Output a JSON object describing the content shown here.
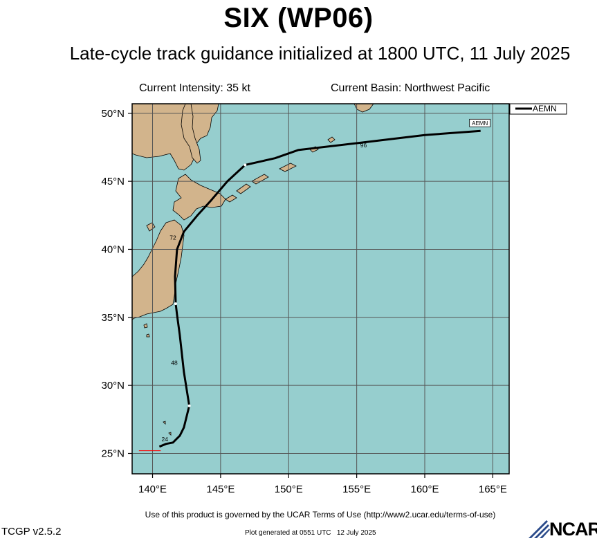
{
  "title": "SIX (WP06)",
  "subtitle": "Late-cycle track guidance initialized at 1800 UTC, 11 July 2025",
  "current_intensity": "Current Intensity: 35 kt",
  "current_basin": "Current Basin: Northwest Pacific",
  "terms": "Use of this product is governed by the UCAR Terms of Use (http://www2.ucar.edu/terms-of-use)",
  "version": "TCGP v2.5.2",
  "generated": "Plot generated at 0551 UTC   12 July 2025",
  "logo_text": "NCAR",
  "legend_label": "AEMN",
  "track_label": "AEMN",
  "colors": {
    "ocean": "#96cece",
    "land": "#d2b48c",
    "grid": "#555555",
    "track": "#000000",
    "initial_marker": "#ff0000"
  },
  "map": {
    "lon_range": [
      138.5,
      166.2
    ],
    "lat_range": [
      23.5,
      50.7
    ],
    "lon_ticks": [
      140,
      145,
      150,
      155,
      160,
      165
    ],
    "lat_ticks": [
      25,
      30,
      35,
      40,
      45,
      50
    ],
    "lon_labels": [
      "140°E",
      "145°E",
      "150°E",
      "155°E",
      "160°E",
      "165°E"
    ],
    "lat_labels": [
      "25°N",
      "30°N",
      "35°N",
      "40°N",
      "45°N",
      "50°N"
    ],
    "track": [
      [
        140.5,
        25.5
      ],
      [
        141.0,
        25.7
      ],
      [
        141.5,
        25.8
      ],
      [
        142.0,
        26.3
      ],
      [
        142.3,
        26.9
      ],
      [
        142.7,
        28.5
      ],
      [
        142.3,
        31.0
      ],
      [
        142.0,
        33.7
      ],
      [
        141.8,
        35.2
      ],
      [
        141.7,
        36.0
      ],
      [
        141.65,
        38.0
      ],
      [
        141.8,
        40.0
      ],
      [
        142.3,
        41.3
      ],
      [
        143.3,
        42.5
      ],
      [
        144.3,
        43.6
      ],
      [
        145.5,
        45.0
      ],
      [
        146.8,
        46.2
      ],
      [
        149.0,
        46.7
      ],
      [
        150.7,
        47.3
      ],
      [
        155.0,
        47.8
      ],
      [
        160.0,
        48.4
      ],
      [
        164.1,
        48.7
      ]
    ],
    "markers": [
      {
        "lon": 141.7,
        "lat": 36.0
      },
      {
        "lon": 142.7,
        "lat": 28.5
      },
      {
        "lon": 146.8,
        "lat": 46.2
      }
    ],
    "hour_labels": [
      {
        "text": "24",
        "lon": 140.9,
        "lat": 25.9
      },
      {
        "text": "48",
        "lon": 141.6,
        "lat": 31.5
      },
      {
        "text": "72",
        "lon": 141.5,
        "lat": 40.7
      },
      {
        "text": "96",
        "lon": 155.5,
        "lat": 47.5
      }
    ],
    "initial_marker_line": [
      [
        139.0,
        25.2
      ],
      [
        140.6,
        25.2
      ]
    ]
  }
}
